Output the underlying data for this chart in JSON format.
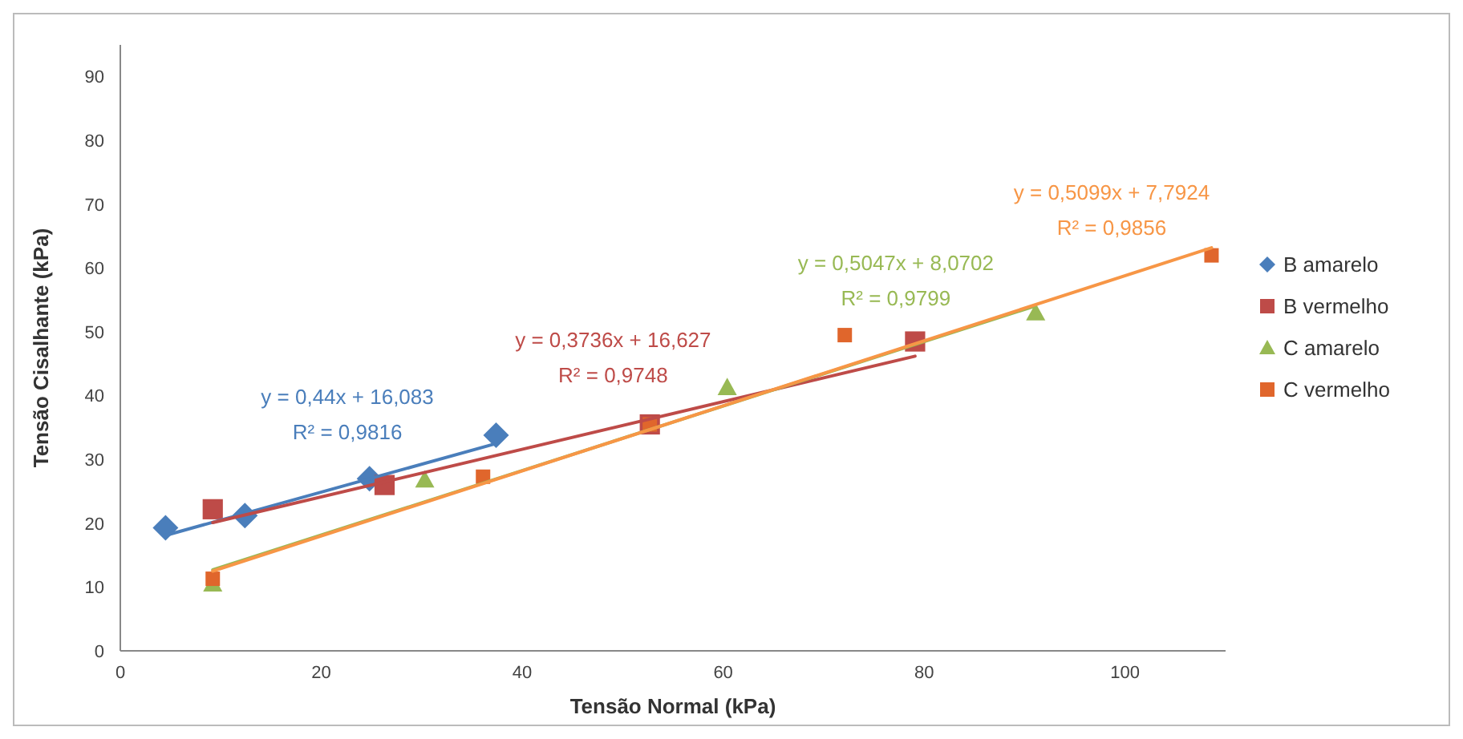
{
  "chart_data": {
    "type": "scatter",
    "xlabel": "Tensão Normal (kPa)",
    "ylabel": "Tensão Cisalhante (kPa)",
    "xlim": [
      0,
      110
    ],
    "xticks": [
      0,
      20,
      40,
      60,
      80,
      100
    ],
    "ylim": [
      0,
      95
    ],
    "yticks": [
      0,
      10,
      20,
      30,
      40,
      50,
      60,
      70,
      80,
      90
    ],
    "grid": false,
    "legend": "right",
    "series": [
      {
        "name": "B amarelo",
        "color": "#4a7ebb",
        "marker": "diamond",
        "x": [
          4.5,
          12.4,
          24.8,
          37.4
        ],
        "values": [
          19.3,
          21.2,
          27,
          33.8
        ]
      },
      {
        "name": "B vermelho",
        "color": "#be4b48",
        "marker": "square",
        "x": [
          9.2,
          26.3,
          52.7,
          79.1
        ],
        "values": [
          22.2,
          26,
          35.5,
          48.5
        ]
      },
      {
        "name": "C amarelo",
        "color": "#98b954",
        "marker": "triangle",
        "x": [
          9.2,
          30.3,
          60.4,
          91.1
        ],
        "values": [
          10.5,
          26.8,
          41.3,
          53
        ]
      },
      {
        "name": "C vermelho",
        "color": "#e0662c",
        "marker": "square",
        "x": [
          9.2,
          36.1,
          52.7,
          72.1,
          108.6
        ],
        "values": [
          11.3,
          27.3,
          35.5,
          49.5,
          62
        ]
      },
      {
        "type": "line",
        "color": "#4a7ebb",
        "marker": "none",
        "x": [
          4.5,
          37.4
        ],
        "values": [
          18.1,
          32.5
        ]
      },
      {
        "type": "line",
        "color": "#be4b48",
        "marker": "none",
        "x": [
          9.2,
          79.1
        ],
        "values": [
          20.1,
          46.2
        ]
      },
      {
        "type": "line",
        "color": "#98b954",
        "marker": "none",
        "x": [
          9.2,
          91.1
        ],
        "values": [
          12.7,
          54.1
        ]
      },
      {
        "type": "line",
        "color": "#f79646",
        "marker": "none",
        "x": [
          9.2,
          108.6
        ],
        "values": [
          12.5,
          63.2
        ]
      }
    ],
    "annotations": [
      "y = 0,44x + 16,083",
      "R² = 0,9816",
      "y = 0,3736x + 16,627",
      "R² = 0,9748",
      "y = 0,5047x + 8,0702",
      "R² = 0,9799",
      "y = 0,5099x + 7,7924",
      "R² = 0,9856"
    ]
  }
}
